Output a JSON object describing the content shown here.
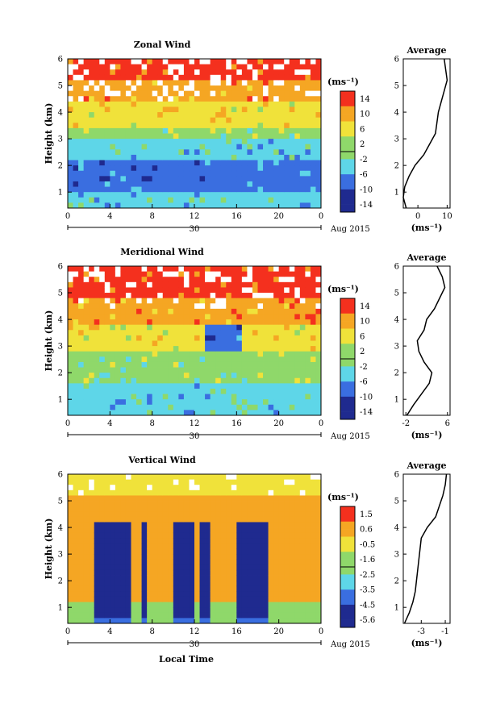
{
  "figure": {
    "x_date_label": "Aug 2015",
    "x_day_label": "30",
    "bottom_xlabel": "Local Time",
    "colors": {
      "red": "#f4301e",
      "orange": "#f5a623",
      "yellow": "#f0e23a",
      "green": "#8fd86a",
      "cyan": "#5ed6e8",
      "blue": "#3a6ee0",
      "navy": "#1f2a8f",
      "white_gap": "#ffffff"
    }
  },
  "chart_data": [
    {
      "type": "heatmap",
      "title": "Zonal Wind",
      "ylabel": "Height (km)",
      "xlabel": "Local Time",
      "xticks": [
        "0",
        "4",
        "8",
        "12",
        "16",
        "20",
        "0"
      ],
      "yticks": [
        "1",
        "2",
        "3",
        "4",
        "5",
        "6"
      ],
      "xlim": [
        0,
        24
      ],
      "ylim": [
        0.4,
        6
      ],
      "colorbar": {
        "unit": "(ms⁻¹)",
        "tick_labels": [
          "14",
          "10",
          "6",
          "2",
          "-2",
          "-6",
          "-10",
          "-14"
        ],
        "range": [
          -16,
          16
        ]
      },
      "grid": false,
      "profile": {
        "title": "Average",
        "xlabel": "(ms⁻¹)",
        "xticks": [
          "0",
          "10"
        ],
        "xlim": [
          -5,
          11
        ],
        "height": [
          0.4,
          0.8,
          1.2,
          1.6,
          2.0,
          2.4,
          2.8,
          3.2,
          3.6,
          4.0,
          4.4,
          4.8,
          5.2,
          5.6,
          6.0
        ],
        "speed": [
          -4,
          -5,
          -4.5,
          -3,
          -1,
          2,
          4,
          6,
          6.5,
          7,
          8,
          9,
          10,
          9.5,
          9
        ]
      }
    },
    {
      "type": "heatmap",
      "title": "Meridional Wind",
      "ylabel": "Height (km)",
      "xlabel": "Local Time",
      "xticks": [
        "0",
        "4",
        "8",
        "12",
        "16",
        "20",
        "0"
      ],
      "yticks": [
        "1",
        "2",
        "3",
        "4",
        "5",
        "6"
      ],
      "xlim": [
        0,
        24
      ],
      "ylim": [
        0.4,
        6
      ],
      "colorbar": {
        "unit": "(ms⁻¹)",
        "tick_labels": [
          "14",
          "10",
          "6",
          "2",
          "-2",
          "-6",
          "-10",
          "-14"
        ],
        "range": [
          -16,
          16
        ]
      },
      "grid": false,
      "profile": {
        "title": "Average",
        "xlabel": "(ms⁻¹)",
        "xticks": [
          "-2",
          "6"
        ],
        "xlim": [
          -2.5,
          6.5
        ],
        "height": [
          0.4,
          0.8,
          1.2,
          1.6,
          2.0,
          2.4,
          2.8,
          3.2,
          3.6,
          4.0,
          4.4,
          4.8,
          5.2,
          5.6,
          6.0
        ],
        "speed": [
          -1.8,
          -0.5,
          1,
          2.5,
          3,
          1.5,
          0.5,
          0.2,
          1.5,
          2,
          3.5,
          4.5,
          5.5,
          5,
          4
        ]
      }
    },
    {
      "type": "heatmap",
      "title": "Vertical Wind",
      "ylabel": "Height (km)",
      "xlabel": "Local Time",
      "xticks": [
        "0",
        "4",
        "8",
        "12",
        "16",
        "20",
        "0"
      ],
      "yticks": [
        "1",
        "2",
        "3",
        "4",
        "5",
        "6"
      ],
      "xlim": [
        0,
        24
      ],
      "ylim": [
        0.4,
        6
      ],
      "colorbar": {
        "unit": "(ms⁻¹)",
        "tick_labels": [
          "1.5",
          "0.6",
          "-0.5",
          "-1.6",
          "-2.5",
          "-3.5",
          "-4.5",
          "-5.6"
        ],
        "range": [
          -6,
          2
        ]
      },
      "grid": false,
      "profile": {
        "title": "Average",
        "xlabel": "(ms⁻¹)",
        "xticks": [
          "-3",
          "-1"
        ],
        "xlim": [
          -4.5,
          -0.6
        ],
        "height": [
          0.4,
          0.8,
          1.2,
          1.6,
          2.0,
          2.4,
          2.8,
          3.2,
          3.6,
          4.0,
          4.4,
          4.8,
          5.2,
          5.6,
          6.0
        ],
        "speed": [
          -4.4,
          -4,
          -3.7,
          -3.5,
          -3.4,
          -3.3,
          -3.2,
          -3.1,
          -3,
          -2.5,
          -1.8,
          -1.5,
          -1.2,
          -1,
          -0.9
        ]
      }
    }
  ]
}
